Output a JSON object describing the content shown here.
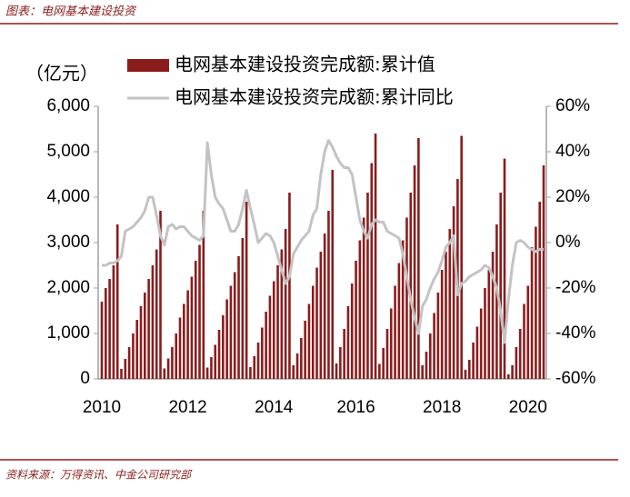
{
  "header": {
    "title": "图表：电网基本建设投资"
  },
  "chart_data": {
    "type": "bar-line",
    "ylabel": "（亿元）",
    "categories": [
      "2010",
      null,
      null,
      null,
      null,
      null,
      null,
      null,
      null,
      null,
      null,
      null,
      null,
      null,
      null,
      null,
      null,
      null,
      null,
      null,
      null,
      null,
      "2012",
      null,
      null,
      null,
      null,
      null,
      null,
      null,
      null,
      null,
      null,
      null,
      null,
      null,
      null,
      null,
      null,
      null,
      null,
      null,
      null,
      null,
      "2014",
      null,
      null,
      null,
      null,
      null,
      null,
      null,
      null,
      null,
      null,
      null,
      null,
      null,
      null,
      null,
      null,
      null,
      null,
      null,
      null,
      "2016",
      null,
      null,
      null,
      null,
      null,
      null,
      null,
      null,
      null,
      null,
      null,
      null,
      null,
      null,
      null,
      null,
      null,
      null,
      null,
      null,
      null,
      "2018",
      null,
      null,
      null,
      null,
      null,
      null,
      null,
      null,
      null,
      null,
      null,
      null,
      null,
      null,
      null,
      null,
      null,
      null,
      null,
      null,
      null,
      "2020",
      null,
      null,
      null,
      null
    ],
    "series": [
      {
        "name": "电网基本建设投资完成额:累计值",
        "color": "#8b1c1c",
        "kind": "bar",
        "values": [
          1700,
          2000,
          2200,
          2500,
          3400,
          220,
          440,
          700,
          1000,
          1300,
          1600,
          1900,
          2200,
          2500,
          2850,
          3700,
          230,
          450,
          700,
          1000,
          1350,
          1650,
          1950,
          2250,
          2600,
          2950,
          3700,
          250,
          480,
          750,
          1080,
          1400,
          1750,
          2050,
          2350,
          2700,
          3100,
          3900,
          260,
          500,
          800,
          1130,
          1480,
          1830,
          2150,
          2500,
          2850,
          3300,
          4100,
          300,
          560,
          900,
          1280,
          1650,
          2050,
          2450,
          2800,
          3200,
          3700,
          4600,
          340,
          700,
          1100,
          1600,
          2100,
          2600,
          3050,
          3550,
          4100,
          4750,
          5400,
          330,
          680,
          1100,
          1550,
          2050,
          2550,
          3050,
          3550,
          4100,
          4700,
          5300,
          300,
          600,
          1000,
          1450,
          1900,
          2400,
          2800,
          3300,
          3800,
          4400,
          5350,
          200,
          420,
          800,
          1150,
          1550,
          2000,
          2400,
          2800,
          3400,
          4100,
          4850,
          100,
          300,
          700,
          1100,
          1650,
          2050,
          2900,
          3350,
          3900,
          4700
        ]
      },
      {
        "name": "电网基本建设投资完成额:累计同比",
        "color": "#c3c3c3",
        "kind": "line",
        "axis": "y2",
        "values": [
          -10,
          -10,
          -9,
          -9,
          -8,
          -6,
          5,
          6,
          7,
          9,
          11,
          14,
          20,
          20,
          12,
          3,
          -1,
          7,
          8,
          6,
          7,
          7,
          5,
          3,
          2,
          1,
          3,
          44,
          30,
          20,
          17,
          15,
          10,
          5,
          5,
          8,
          15,
          23,
          15,
          8,
          0,
          2,
          4,
          3,
          0,
          -6,
          -12,
          -18,
          -15,
          -5,
          -2,
          1,
          3,
          5,
          12,
          15,
          30,
          40,
          45,
          42,
          38,
          35,
          33,
          33,
          30,
          20,
          10,
          5,
          2,
          8,
          10,
          9,
          9,
          5,
          4,
          3,
          2,
          -5,
          -15,
          -25,
          -33,
          -40,
          -28,
          -25,
          -20,
          -16,
          -13,
          -8,
          -2,
          0,
          3,
          -23,
          -18,
          -17,
          -15,
          -14,
          -13,
          -12,
          -10,
          -11,
          -15,
          -20,
          -30,
          -44,
          -25,
          -10,
          0,
          1,
          0,
          -2,
          -3,
          -4,
          -3,
          -3
        ]
      }
    ],
    "ylim": [
      0,
      6000
    ],
    "yticks": [
      0,
      {
        "value": 1000,
        "label": "1,000"
      },
      {
        "value": 2000,
        "label": "2,000"
      },
      {
        "value": 3000,
        "label": "3,000"
      },
      {
        "value": 4000,
        "label": "4,000"
      },
      {
        "value": 5000,
        "label": "5,000"
      },
      {
        "value": 6000,
        "label": "6,000"
      }
    ],
    "y2lim": [
      -60,
      60
    ],
    "y2ticks": [
      {
        "value": -60,
        "label": "-60%"
      },
      {
        "value": -40,
        "label": "-40%"
      },
      {
        "value": -20,
        "label": "-20%"
      },
      {
        "value": 0,
        "label": "0%"
      },
      {
        "value": 20,
        "label": "20%"
      },
      {
        "value": 40,
        "label": "40%"
      },
      {
        "value": 60,
        "label": "60%"
      }
    ],
    "legend": "top"
  },
  "footer": {
    "source": "资料来源：万得资讯、中金公司研究部"
  }
}
